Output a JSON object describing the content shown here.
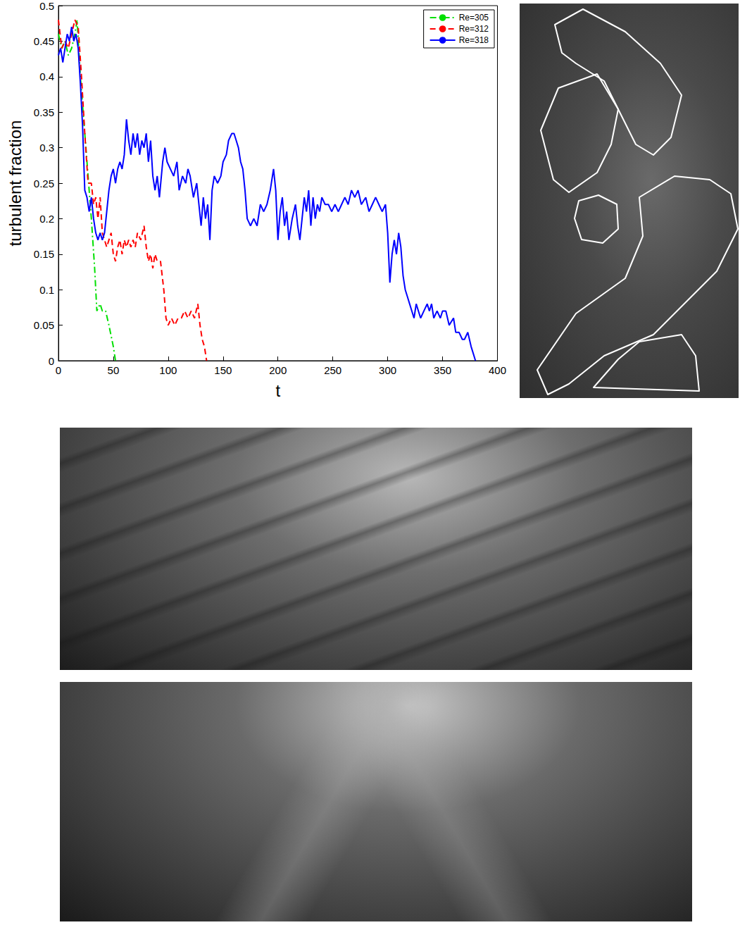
{
  "chart_data": {
    "type": "line",
    "xlabel": "t",
    "ylabel": "turbulent fraction",
    "xlim": [
      0,
      400
    ],
    "xticks": [
      0,
      50,
      100,
      150,
      200,
      250,
      300,
      350,
      400
    ],
    "ylim": [
      0,
      0.5
    ],
    "yticks": [
      0,
      0.05,
      0.1,
      0.15,
      0.2,
      0.25,
      0.3,
      0.35,
      0.4,
      0.45,
      0.5
    ],
    "grid": false,
    "legend": "upper right",
    "series": [
      {
        "name": "Re=305",
        "color": "#00e000",
        "line_style": "dashdot",
        "x": [
          0,
          3,
          6,
          9,
          12,
          15,
          17,
          20,
          25,
          30,
          33,
          35,
          38,
          40,
          43,
          46,
          50,
          52
        ],
        "values": [
          0.46,
          0.44,
          0.45,
          0.43,
          0.44,
          0.46,
          0.48,
          0.4,
          0.3,
          0.2,
          0.13,
          0.07,
          0.08,
          0.07,
          0.07,
          0.05,
          0.02,
          0
        ]
      },
      {
        "name": "Re=312",
        "color": "#ff0000",
        "line_style": "dashed",
        "x": [
          0,
          3,
          6,
          9,
          12,
          15,
          18,
          21,
          24,
          27,
          30,
          32,
          34,
          36,
          38,
          40,
          42,
          44,
          46,
          48,
          50,
          52,
          54,
          56,
          58,
          60,
          62,
          64,
          66,
          68,
          70,
          72,
          75,
          78,
          80,
          82,
          84,
          86,
          88,
          90,
          93,
          96,
          98,
          100,
          103,
          106,
          109,
          112,
          115,
          118,
          121,
          124,
          127,
          129,
          131,
          133,
          135
        ],
        "values": [
          0.48,
          0.44,
          0.45,
          0.44,
          0.46,
          0.48,
          0.47,
          0.4,
          0.32,
          0.25,
          0.25,
          0.22,
          0.23,
          0.2,
          0.23,
          0.18,
          0.17,
          0.16,
          0.17,
          0.18,
          0.15,
          0.14,
          0.16,
          0.17,
          0.15,
          0.17,
          0.16,
          0.17,
          0.16,
          0.17,
          0.16,
          0.18,
          0.17,
          0.19,
          0.16,
          0.14,
          0.15,
          0.13,
          0.15,
          0.14,
          0.14,
          0.1,
          0.06,
          0.05,
          0.06,
          0.05,
          0.06,
          0.06,
          0.07,
          0.06,
          0.07,
          0.06,
          0.08,
          0.05,
          0.03,
          0.02,
          0
        ]
      },
      {
        "name": "Re=318",
        "color": "#0000ff",
        "line_style": "solid",
        "x": [
          0,
          2,
          4,
          6,
          8,
          10,
          12,
          14,
          16,
          18,
          20,
          22,
          24,
          26,
          28,
          30,
          32,
          34,
          36,
          38,
          40,
          42,
          44,
          46,
          48,
          50,
          52,
          54,
          56,
          58,
          60,
          62,
          64,
          66,
          68,
          70,
          72,
          74,
          76,
          78,
          80,
          82,
          84,
          86,
          88,
          90,
          92,
          95,
          97,
          99,
          102,
          105,
          108,
          110,
          113,
          116,
          118,
          120,
          123,
          126,
          128,
          130,
          132,
          134,
          136,
          138,
          140,
          142,
          145,
          148,
          150,
          153,
          155,
          158,
          160,
          162,
          164,
          166,
          168,
          170,
          172,
          175,
          178,
          181,
          184,
          187,
          190,
          193,
          196,
          198,
          200,
          202,
          204,
          206,
          208,
          210,
          213,
          216,
          218,
          220,
          222,
          224,
          226,
          228,
          230,
          232,
          234,
          236,
          238,
          240,
          243,
          246,
          249,
          252,
          255,
          258,
          261,
          264,
          267,
          270,
          273,
          276,
          280,
          283,
          286,
          289,
          292,
          295,
          298,
          300,
          302,
          304,
          306,
          308,
          310,
          312,
          314,
          316,
          318,
          320,
          322,
          324,
          326,
          328,
          330,
          333,
          336,
          338,
          340,
          342,
          345,
          348,
          350,
          353,
          356,
          360,
          362,
          365,
          368,
          370,
          373,
          376,
          378,
          380
        ],
        "values": [
          0.43,
          0.44,
          0.42,
          0.44,
          0.46,
          0.45,
          0.47,
          0.45,
          0.46,
          0.44,
          0.39,
          0.33,
          0.24,
          0.23,
          0.21,
          0.23,
          0.2,
          0.18,
          0.17,
          0.18,
          0.17,
          0.18,
          0.21,
          0.24,
          0.26,
          0.27,
          0.25,
          0.27,
          0.28,
          0.27,
          0.29,
          0.34,
          0.31,
          0.29,
          0.32,
          0.3,
          0.32,
          0.29,
          0.31,
          0.3,
          0.32,
          0.28,
          0.31,
          0.26,
          0.24,
          0.26,
          0.23,
          0.28,
          0.3,
          0.28,
          0.27,
          0.26,
          0.28,
          0.24,
          0.26,
          0.25,
          0.27,
          0.26,
          0.23,
          0.25,
          0.22,
          0.19,
          0.23,
          0.2,
          0.22,
          0.17,
          0.24,
          0.26,
          0.25,
          0.26,
          0.28,
          0.29,
          0.31,
          0.32,
          0.32,
          0.31,
          0.3,
          0.28,
          0.27,
          0.24,
          0.2,
          0.19,
          0.2,
          0.19,
          0.22,
          0.21,
          0.22,
          0.24,
          0.27,
          0.24,
          0.17,
          0.21,
          0.23,
          0.19,
          0.21,
          0.17,
          0.2,
          0.22,
          0.19,
          0.17,
          0.2,
          0.23,
          0.21,
          0.24,
          0.19,
          0.23,
          0.2,
          0.22,
          0.21,
          0.23,
          0.22,
          0.22,
          0.21,
          0.22,
          0.21,
          0.22,
          0.23,
          0.22,
          0.24,
          0.23,
          0.24,
          0.22,
          0.23,
          0.21,
          0.22,
          0.23,
          0.22,
          0.21,
          0.22,
          0.18,
          0.11,
          0.15,
          0.17,
          0.15,
          0.18,
          0.16,
          0.12,
          0.1,
          0.09,
          0.08,
          0.07,
          0.06,
          0.08,
          0.07,
          0.06,
          0.07,
          0.08,
          0.07,
          0.08,
          0.06,
          0.07,
          0.06,
          0.07,
          0.07,
          0.05,
          0.06,
          0.04,
          0.04,
          0.03,
          0.03,
          0.04,
          0.02,
          0.01,
          0
        ]
      }
    ]
  }
}
